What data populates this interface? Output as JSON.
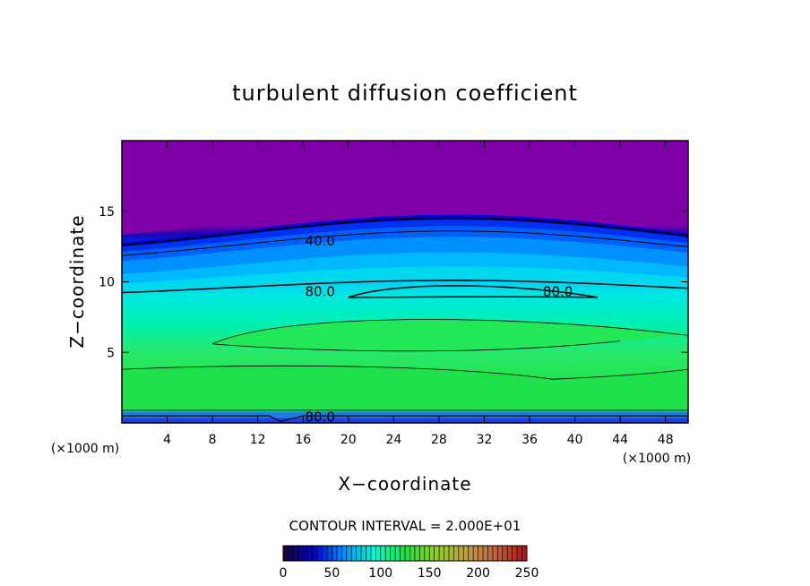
{
  "chart_data": {
    "type": "heatmap",
    "title": "turbulent diffusion coefficient",
    "xlabel": "X−coordinate",
    "ylabel": "Z−coordinate",
    "x_unit": "(×1000 m)",
    "y_unit": "(×1000 m)",
    "xlim": [
      0,
      50
    ],
    "ylim": [
      0,
      20
    ],
    "x_ticks": [
      4,
      8,
      12,
      16,
      20,
      24,
      28,
      32,
      36,
      40,
      44,
      48
    ],
    "y_ticks": [
      5,
      10,
      15
    ],
    "contour_interval_text": "CONTOUR INTERVAL = 2.000E+01",
    "contour_labels": [
      {
        "text": "40.0",
        "x": 17.5,
        "y": 12.9
      },
      {
        "text": "80.0",
        "x": 17.5,
        "y": 9.3
      },
      {
        "text": "80.0",
        "x": 38.5,
        "y": 9.3
      },
      {
        "text": "80.0",
        "x": 17.5,
        "y": 0.4
      }
    ],
    "colorbar": {
      "min": 0,
      "max": 250,
      "ticks": [
        0,
        50,
        100,
        150,
        200,
        250
      ],
      "colors": [
        "#1a0033",
        "#0000c8",
        "#0090ff",
        "#00ffd0",
        "#20e040",
        "#90d020",
        "#c0a040",
        "#c06040",
        "#b01010"
      ]
    },
    "colors": {
      "top_region": "#7f00a8",
      "low": "#0000e0",
      "mid": "#00b0ff",
      "high": "#00ffc0",
      "peak": "#20e040"
    }
  }
}
